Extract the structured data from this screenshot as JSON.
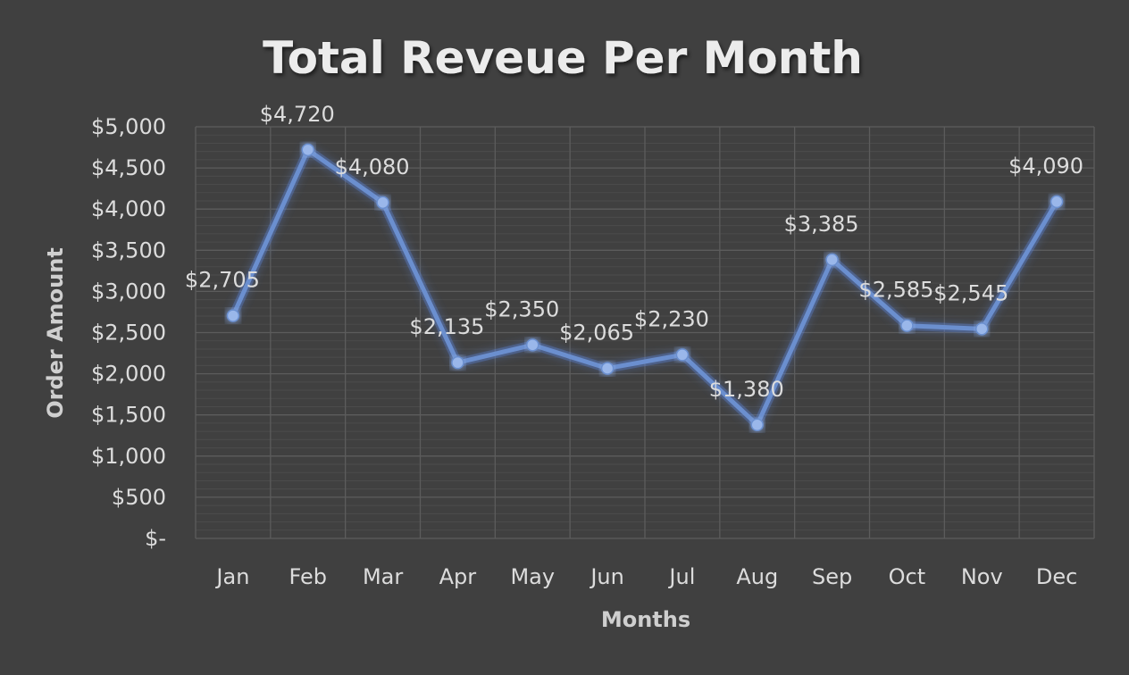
{
  "chart_data": {
    "type": "line",
    "title": "Total Reveue Per Month",
    "xlabel": "Months",
    "ylabel": "Order Amount",
    "categories": [
      "Jan",
      "Feb",
      "Mar",
      "Apr",
      "May",
      "Jun",
      "Jul",
      "Aug",
      "Sep",
      "Oct",
      "Nov",
      "Dec"
    ],
    "series": [
      {
        "name": "Order Amount",
        "values": [
          2705,
          4720,
          4080,
          2135,
          2350,
          2065,
          2230,
          1380,
          3385,
          2585,
          2545,
          4090
        ],
        "labels": [
          "$2,705",
          "$4,720",
          "$4,080",
          "$2,135",
          "$2,350",
          "$2,065",
          "$2,230",
          "$1,380",
          "$3,385",
          "$2,585",
          "$2,545",
          "$4,090"
        ]
      }
    ],
    "ylim": [
      0,
      5000
    ],
    "ytick_values": [
      0,
      500,
      1000,
      1500,
      2000,
      2500,
      3000,
      3500,
      4000,
      4500,
      5000
    ],
    "ytick_labels": [
      "$-",
      "$500",
      "$1,000",
      "$1,500",
      "$2,000",
      "$2,500",
      "$3,000",
      "$3,500",
      "$4,000",
      "$4,500",
      "$5,000"
    ],
    "grid": true,
    "legend": "none",
    "colors": {
      "background": "#404040",
      "line": "#6b8fcf",
      "marker": "#9ab7ea",
      "glow": "#5b84d6"
    }
  }
}
